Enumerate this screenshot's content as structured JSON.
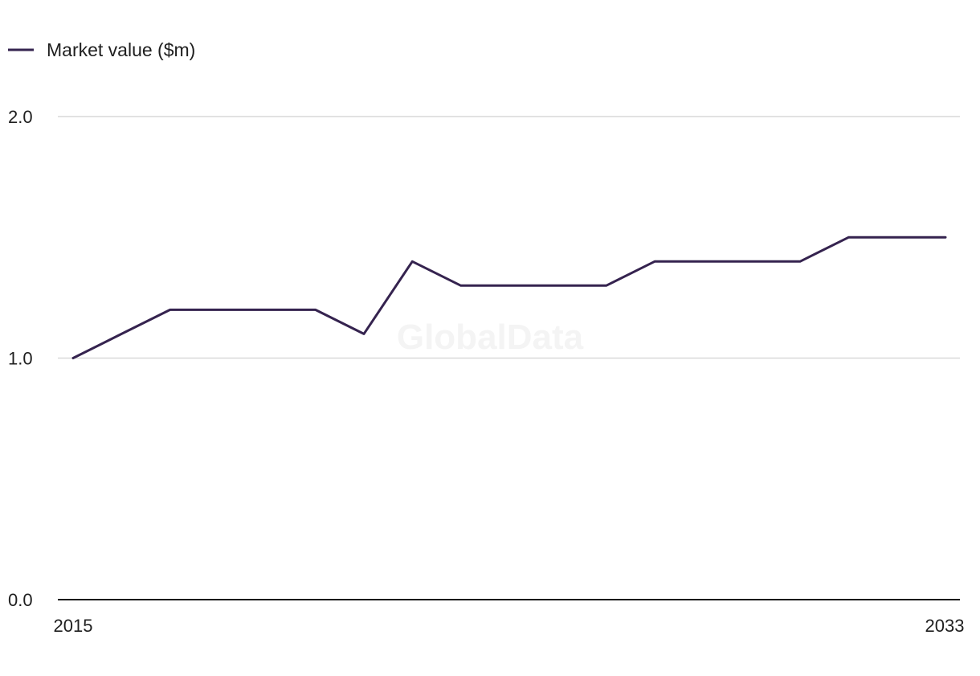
{
  "colors": {
    "series": "#35234f",
    "grid": "#d9d9d9",
    "axis": "#1a1a1a",
    "watermark": "#f4f4f4"
  },
  "watermark": "GlobalData",
  "chart_data": {
    "type": "line",
    "x": [
      2015,
      2016,
      2017,
      2018,
      2019,
      2020,
      2021,
      2022,
      2023,
      2024,
      2025,
      2026,
      2027,
      2028,
      2029,
      2030,
      2031,
      2032,
      2033
    ],
    "x_tick_labels": [
      "2015",
      "2033"
    ],
    "series": [
      {
        "name": "Market value ($m)",
        "values": [
          1.0,
          1.1,
          1.2,
          1.2,
          1.2,
          1.2,
          1.1,
          1.4,
          1.3,
          1.3,
          1.3,
          1.3,
          1.4,
          1.4,
          1.4,
          1.4,
          1.5,
          1.5,
          1.5
        ]
      }
    ],
    "y_ticks": [
      0.0,
      1.0,
      2.0
    ],
    "y_tick_labels": [
      "0.0",
      "1.0",
      "2.0"
    ],
    "ylim": [
      0,
      2
    ],
    "xlim": [
      2015,
      2033
    ],
    "grid": true,
    "legend_position": "top-left",
    "title": "",
    "xlabel": "",
    "ylabel": ""
  }
}
